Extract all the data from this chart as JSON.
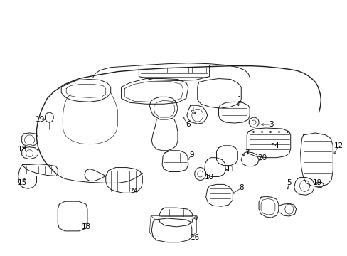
{
  "background_color": "#ffffff",
  "line_color": "#1a1a1a",
  "text_color": "#000000",
  "fig_width": 4.89,
  "fig_height": 3.6,
  "dpi": 100,
  "font_size": 7.5,
  "lw_main": 0.7,
  "lw_thin": 0.45,
  "lw_thick": 1.0
}
